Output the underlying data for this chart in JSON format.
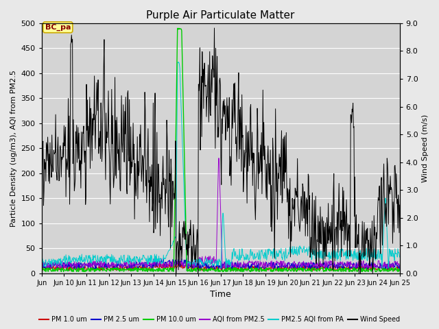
{
  "title": "Purple Air Particulate Matter",
  "xlabel": "Time",
  "ylabel_left": "Particle Density (ug/m3), AQI from PM2.5",
  "ylabel_right": "Wind Speed (m/s)",
  "ylim_left": [
    0,
    500
  ],
  "ylim_right": [
    0,
    9.0
  ],
  "yticks_left": [
    0,
    50,
    100,
    150,
    200,
    250,
    300,
    350,
    400,
    450,
    500
  ],
  "yticks_right": [
    0.0,
    1.0,
    2.0,
    3.0,
    4.0,
    5.0,
    6.0,
    7.0,
    8.0,
    9.0
  ],
  "xtick_labels": [
    "Jun",
    "Jun 10",
    "Jun 11",
    "Jun 12",
    "Jun 13",
    "Jun 14",
    "Jun 15",
    "Jun 16",
    "Jun 17",
    "Jun 18",
    "Jun 19",
    "Jun 20",
    "Jun 21",
    "Jun 22",
    "Jun 23",
    "Jun 24",
    "Jun 25"
  ],
  "legend_entries": [
    {
      "label": "PM 1.0 um",
      "color": "#cc0000"
    },
    {
      "label": "PM 2.5 um",
      "color": "#0000cc"
    },
    {
      "label": "PM 10.0 um",
      "color": "#00cc00"
    },
    {
      "label": "AQI from PM2.5",
      "color": "#9900cc"
    },
    {
      "label": "PM2.5 AQI from PA",
      "color": "#00cccc"
    },
    {
      "label": "Wind Speed",
      "color": "#000000"
    }
  ],
  "annotation_text": "BC_pa",
  "annotation_fg": "#880000",
  "annotation_bg": "#ffff99",
  "annotation_border": "#ccaa00",
  "fig_bg": "#e8e8e8",
  "plot_bg": "#d4d4d4",
  "grid_color": "#ffffff"
}
